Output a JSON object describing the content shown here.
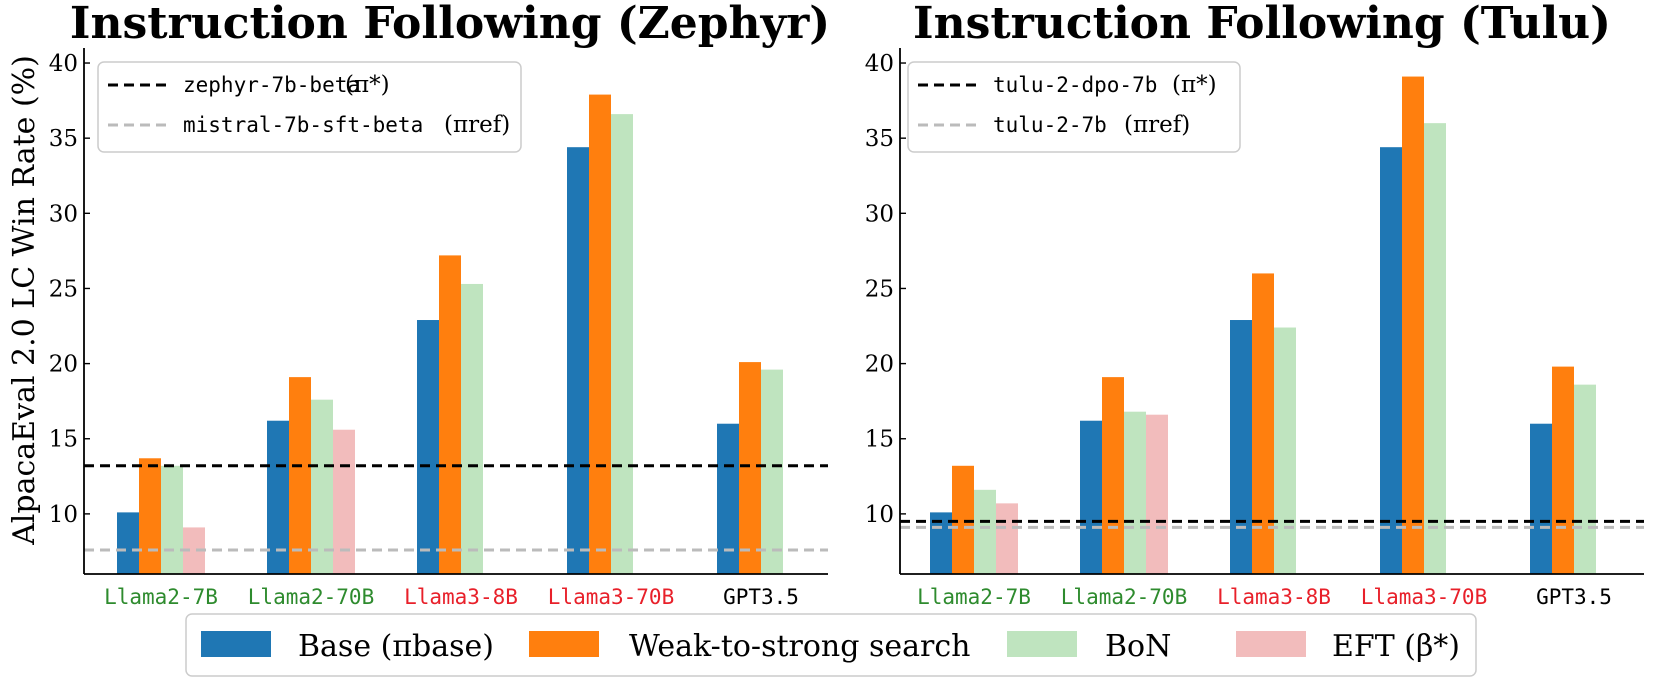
{
  "chart_data": [
    {
      "type": "bar",
      "title": "Instruction Following (Zephyr)",
      "ylabel": "AlpacaEval 2.0 LC Win Rate (%)",
      "ylim": [
        6,
        41
      ],
      "yticks": [
        10,
        15,
        20,
        25,
        30,
        35,
        40
      ],
      "categories": [
        "Llama2-7B",
        "Llama2-70B",
        "Llama3-8B",
        "Llama3-70B",
        "GPT3.5"
      ],
      "category_colors": [
        "#2e8b2e",
        "#2e8b2e",
        "#e8202a",
        "#e8202a",
        "#000000"
      ],
      "series": [
        {
          "name": "Base",
          "values": [
            10.1,
            16.2,
            22.9,
            34.4,
            16.0
          ]
        },
        {
          "name": "Weak-to-strong search",
          "values": [
            13.7,
            19.1,
            27.2,
            37.9,
            20.1
          ]
        },
        {
          "name": "BoN",
          "values": [
            13.2,
            17.6,
            25.3,
            36.6,
            19.6
          ]
        },
        {
          "name": "EFT",
          "values": [
            9.1,
            15.6,
            null,
            null,
            null
          ]
        }
      ],
      "reference_lines": [
        {
          "label": "zephyr-7b-beta",
          "symbol": "(π*)",
          "value": 13.2,
          "color": "#000000"
        },
        {
          "label": "mistral-7b-sft-beta",
          "symbol": "(πref)",
          "value": 7.6,
          "color": "#bbbbbb"
        }
      ]
    },
    {
      "type": "bar",
      "title": "Instruction Following (Tulu)",
      "ylabel": "",
      "ylim": [
        6,
        41
      ],
      "yticks": [
        10,
        15,
        20,
        25,
        30,
        35,
        40
      ],
      "categories": [
        "Llama2-7B",
        "Llama2-70B",
        "Llama3-8B",
        "Llama3-70B",
        "GPT3.5"
      ],
      "category_colors": [
        "#2e8b2e",
        "#2e8b2e",
        "#e8202a",
        "#e8202a",
        "#000000"
      ],
      "series": [
        {
          "name": "Base",
          "values": [
            10.1,
            16.2,
            22.9,
            34.4,
            16.0
          ]
        },
        {
          "name": "Weak-to-strong search",
          "values": [
            13.2,
            19.1,
            26.0,
            39.1,
            19.8
          ]
        },
        {
          "name": "BoN",
          "values": [
            11.6,
            16.8,
            22.4,
            36.0,
            18.6
          ]
        },
        {
          "name": "EFT",
          "values": [
            10.7,
            16.6,
            null,
            null,
            null
          ]
        }
      ],
      "reference_lines": [
        {
          "label": "tulu-2-dpo-7b",
          "symbol": "(π*)",
          "value": 9.5,
          "color": "#000000"
        },
        {
          "label": "tulu-2-7b",
          "symbol": "(πref)",
          "value": 9.1,
          "color": "#bbbbbb"
        }
      ]
    }
  ],
  "legend": [
    {
      "label": "Base (πbase)",
      "color": "#1f77b4"
    },
    {
      "label": "Weak-to-strong search",
      "color": "#ff7f0e"
    },
    {
      "label": "BoN",
      "color": "#bfe4bf"
    },
    {
      "label": "EFT (β*)",
      "color": "#f2bcbc"
    }
  ],
  "colors": {
    "base": "#1f77b4",
    "w2s": "#ff7f0e",
    "bon": "#bfe4bf",
    "eft": "#f2bcbc"
  }
}
